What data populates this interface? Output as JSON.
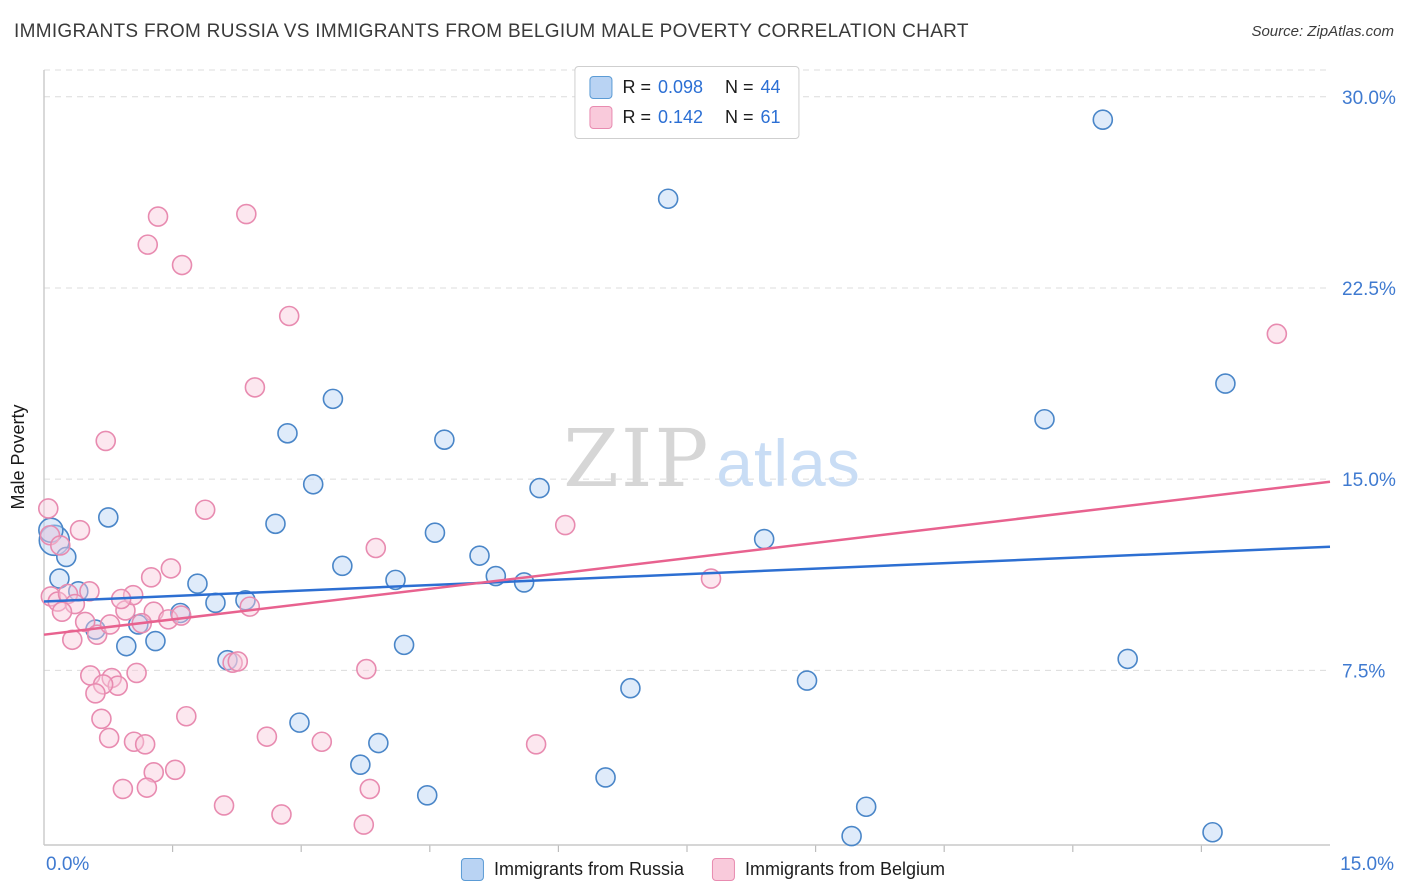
{
  "header": {
    "title": "IMMIGRANTS FROM RUSSIA VS IMMIGRANTS FROM BELGIUM MALE POVERTY CORRELATION CHART",
    "source": "Source: ZipAtlas.com"
  },
  "watermark": {
    "zip": "ZIP",
    "atlas": "atlas"
  },
  "chart_data": {
    "type": "scatter",
    "title": "IMMIGRANTS FROM RUSSIA VS IMMIGRANTS FROM BELGIUM MALE POVERTY CORRELATION CHART",
    "xlabel": "",
    "ylabel": "Male Poverty",
    "xlim": [
      0,
      15
    ],
    "ylim": [
      0.65,
      31.05
    ],
    "grid": "horizontal-dashed",
    "legend_position": "top-center",
    "x_axis": {
      "min_label": "0.0%",
      "max_label": "15.0%",
      "minor_tick_step": 1.5
    },
    "y_ticks": [
      {
        "value": 30.0,
        "label": "30.0%"
      },
      {
        "value": 22.5,
        "label": "22.5%"
      },
      {
        "value": 15.0,
        "label": "15.0%"
      },
      {
        "value": 7.5,
        "label": "7.5%"
      }
    ],
    "legend_box": [
      {
        "r_label": "R =",
        "r_value": "0.098",
        "n_label": "N =",
        "n_value": "44"
      },
      {
        "r_label": "R =",
        "r_value": "0.142",
        "n_label": "N =",
        "n_value": "61"
      }
    ],
    "series": [
      {
        "id": "russia",
        "name": "Immigrants from Russia",
        "R": 0.098,
        "N": 44,
        "fill_color": "#b9d3f3",
        "stroke_color": "#4a86c8",
        "line_color": "#2d6fd2",
        "trend": {
          "x1": 0,
          "y1": 10.2,
          "x2": 15,
          "y2": 12.35
        },
        "points": [
          [
            12.35,
            29.1
          ],
          [
            7.28,
            26.0
          ],
          [
            13.78,
            18.75
          ],
          [
            11.67,
            17.35
          ],
          [
            3.37,
            18.15
          ],
          [
            2.84,
            16.8
          ],
          [
            4.67,
            16.55
          ],
          [
            3.14,
            14.8
          ],
          [
            5.78,
            14.65
          ],
          [
            0.75,
            13.5
          ],
          [
            4.56,
            12.9
          ],
          [
            0.12,
            12.6,
            15
          ],
          [
            8.4,
            12.65
          ],
          [
            2.7,
            13.25
          ],
          [
            5.08,
            12.0
          ],
          [
            0.26,
            11.95
          ],
          [
            3.48,
            11.6
          ],
          [
            4.1,
            11.05
          ],
          [
            5.27,
            11.2
          ],
          [
            5.6,
            10.95
          ],
          [
            1.79,
            10.9
          ],
          [
            0.4,
            10.6
          ],
          [
            2.0,
            10.15
          ],
          [
            2.35,
            10.25
          ],
          [
            1.1,
            9.3
          ],
          [
            1.59,
            9.75
          ],
          [
            0.6,
            9.1
          ],
          [
            0.96,
            8.45
          ],
          [
            1.3,
            8.65
          ],
          [
            4.2,
            8.5
          ],
          [
            2.14,
            7.9
          ],
          [
            12.64,
            7.95
          ],
          [
            8.9,
            7.1
          ],
          [
            6.84,
            6.8
          ],
          [
            2.98,
            5.45
          ],
          [
            3.9,
            4.65
          ],
          [
            3.69,
            3.8
          ],
          [
            6.55,
            3.3
          ],
          [
            4.47,
            2.6
          ],
          [
            9.59,
            2.15
          ],
          [
            9.42,
            1.0
          ],
          [
            13.63,
            1.15
          ],
          [
            0.08,
            13.0,
            12
          ],
          [
            0.18,
            11.1
          ]
        ]
      },
      {
        "id": "belgium",
        "name": "Immigrants from Belgium",
        "R": 0.142,
        "N": 61,
        "fill_color": "#f9cadb",
        "stroke_color": "#e88bb0",
        "line_color": "#e8628f",
        "trend": {
          "x1": 0,
          "y1": 8.9,
          "x2": 15,
          "y2": 14.9
        },
        "points": [
          [
            1.33,
            25.3
          ],
          [
            2.36,
            25.4
          ],
          [
            1.21,
            24.2
          ],
          [
            1.61,
            23.4
          ],
          [
            2.86,
            21.4
          ],
          [
            2.46,
            18.6
          ],
          [
            0.72,
            16.5
          ],
          [
            14.38,
            20.7
          ],
          [
            0.05,
            13.85
          ],
          [
            0.07,
            12.8
          ],
          [
            1.88,
            13.8
          ],
          [
            3.87,
            12.3
          ],
          [
            6.08,
            13.2
          ],
          [
            7.78,
            11.1
          ],
          [
            1.25,
            11.15
          ],
          [
            0.19,
            12.4
          ],
          [
            1.48,
            11.5
          ],
          [
            0.42,
            13.0
          ],
          [
            0.08,
            10.4
          ],
          [
            0.16,
            10.2
          ],
          [
            0.28,
            10.5
          ],
          [
            0.36,
            10.1
          ],
          [
            0.21,
            9.8
          ],
          [
            0.48,
            9.4
          ],
          [
            0.62,
            8.9
          ],
          [
            0.33,
            8.7
          ],
          [
            0.77,
            9.3
          ],
          [
            0.53,
            10.6
          ],
          [
            0.95,
            9.85
          ],
          [
            1.28,
            9.8
          ],
          [
            1.14,
            9.35
          ],
          [
            1.04,
            10.45
          ],
          [
            1.45,
            9.5
          ],
          [
            1.6,
            9.65
          ],
          [
            0.9,
            10.3
          ],
          [
            0.54,
            7.3
          ],
          [
            0.79,
            7.2
          ],
          [
            0.86,
            6.9
          ],
          [
            0.69,
            6.95
          ],
          [
            1.08,
            7.4
          ],
          [
            2.2,
            7.8
          ],
          [
            2.26,
            7.85
          ],
          [
            3.76,
            7.55
          ],
          [
            1.66,
            5.7
          ],
          [
            0.67,
            5.6
          ],
          [
            0.76,
            4.85
          ],
          [
            1.05,
            4.7
          ],
          [
            1.18,
            4.6
          ],
          [
            1.28,
            3.5
          ],
          [
            1.2,
            2.9
          ],
          [
            0.92,
            2.85
          ],
          [
            2.1,
            2.2
          ],
          [
            2.77,
            1.85
          ],
          [
            3.24,
            4.7
          ],
          [
            3.8,
            2.85
          ],
          [
            3.73,
            1.45
          ],
          [
            5.74,
            4.6
          ],
          [
            2.6,
            4.9
          ],
          [
            2.4,
            10.0
          ],
          [
            0.6,
            6.6
          ],
          [
            1.53,
            3.6
          ]
        ]
      }
    ]
  }
}
